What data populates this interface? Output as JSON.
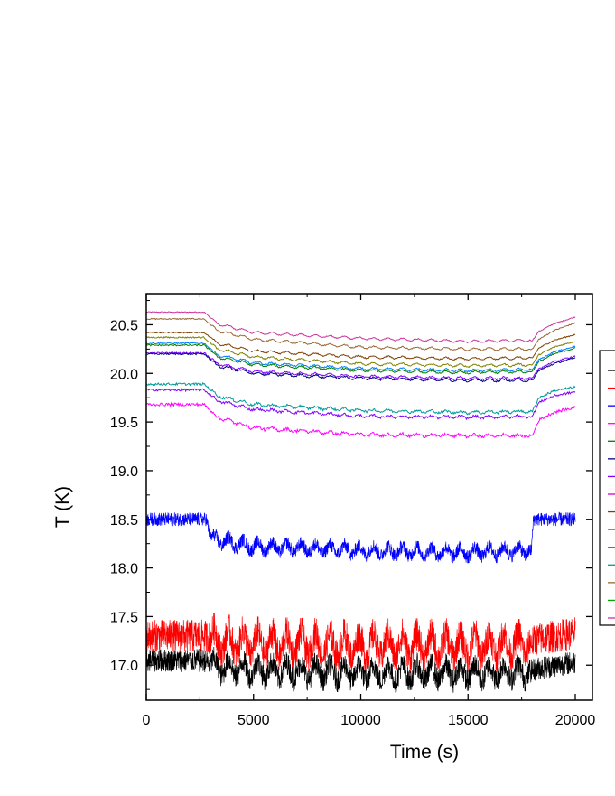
{
  "chart_data": {
    "type": "line",
    "xlabel": "Time (s)",
    "ylabel": "T (K)",
    "xlim": [
      0,
      20800
    ],
    "ylim": [
      16.64,
      20.82
    ],
    "xticks": [
      0,
      5000,
      10000,
      15000,
      20000
    ],
    "xtick_labels": [
      "0",
      "5000",
      "10000",
      "15000",
      "20000"
    ],
    "yticks": [
      17.0,
      17.5,
      18.0,
      18.5,
      19.0,
      19.5,
      20.0,
      20.5
    ],
    "ytick_labels": [
      "17.0",
      "17.5",
      "18.0",
      "18.5",
      "19.0",
      "19.5",
      "20.0",
      "20.5"
    ],
    "grid": false,
    "legend": "right (cut off at image edge, entry labels not visible)",
    "series": [
      {
        "color": "#000000",
        "noise": 0.12,
        "points": [
          [
            0,
            17.05
          ],
          [
            2700,
            17.05
          ],
          [
            3200,
            16.98
          ],
          [
            5000,
            16.95
          ],
          [
            10000,
            16.92
          ],
          [
            15000,
            16.92
          ],
          [
            17800,
            16.93
          ],
          [
            18300,
            16.97
          ],
          [
            20000,
            17.03
          ]
        ]
      },
      {
        "color": "#ff0000",
        "noise": 0.17,
        "points": [
          [
            0,
            17.3
          ],
          [
            2700,
            17.3
          ],
          [
            3200,
            17.25
          ],
          [
            5000,
            17.22
          ],
          [
            10000,
            17.2
          ],
          [
            15000,
            17.2
          ],
          [
            17800,
            17.22
          ],
          [
            18300,
            17.27
          ],
          [
            20000,
            17.33
          ]
        ]
      },
      {
        "color": "#0000ff",
        "noise": 0.07,
        "points": [
          [
            0,
            18.5
          ],
          [
            2800,
            18.5
          ],
          [
            3000,
            18.3
          ],
          [
            5000,
            18.22
          ],
          [
            10000,
            18.18
          ],
          [
            15000,
            18.16
          ],
          [
            17950,
            18.18
          ],
          [
            18050,
            18.5
          ],
          [
            20000,
            18.5
          ]
        ]
      },
      {
        "color": "#ff00ff",
        "noise": 0.015,
        "points": [
          [
            0,
            19.68
          ],
          [
            2700,
            19.68
          ],
          [
            3300,
            19.55
          ],
          [
            5000,
            19.44
          ],
          [
            10000,
            19.37
          ],
          [
            15000,
            19.36
          ],
          [
            18000,
            19.36
          ],
          [
            18300,
            19.52
          ],
          [
            19000,
            19.6
          ],
          [
            20000,
            19.65
          ]
        ]
      },
      {
        "color": "#8000ff",
        "noise": 0.012,
        "points": [
          [
            0,
            19.83
          ],
          [
            2700,
            19.83
          ],
          [
            3300,
            19.72
          ],
          [
            5000,
            19.63
          ],
          [
            10000,
            19.56
          ],
          [
            15000,
            19.55
          ],
          [
            18000,
            19.56
          ],
          [
            18300,
            19.7
          ],
          [
            19000,
            19.77
          ],
          [
            20000,
            19.81
          ]
        ]
      },
      {
        "color": "#009999",
        "noise": 0.012,
        "points": [
          [
            0,
            19.89
          ],
          [
            2700,
            19.89
          ],
          [
            3300,
            19.77
          ],
          [
            5000,
            19.68
          ],
          [
            10000,
            19.62
          ],
          [
            15000,
            19.6
          ],
          [
            18000,
            19.61
          ],
          [
            18300,
            19.75
          ],
          [
            19000,
            19.82
          ],
          [
            20000,
            19.86
          ]
        ]
      },
      {
        "color": "#000080",
        "noise": 0.008,
        "points": [
          [
            0,
            20.2
          ],
          [
            2700,
            20.2
          ],
          [
            3300,
            20.08
          ],
          [
            5000,
            20.0
          ],
          [
            10000,
            19.95
          ],
          [
            15000,
            19.93
          ],
          [
            18000,
            19.93
          ],
          [
            18300,
            20.03
          ],
          [
            19000,
            20.1
          ],
          [
            20000,
            20.16
          ]
        ]
      },
      {
        "color": "#7f00ff",
        "noise": 0.008,
        "points": [
          [
            0,
            20.21
          ],
          [
            2700,
            20.21
          ],
          [
            3300,
            20.1
          ],
          [
            5000,
            20.02
          ],
          [
            10000,
            19.97
          ],
          [
            15000,
            19.95
          ],
          [
            18000,
            19.95
          ],
          [
            18300,
            20.05
          ],
          [
            19000,
            20.12
          ],
          [
            20000,
            20.18
          ]
        ]
      },
      {
        "color": "#007f00",
        "noise": 0.007,
        "points": [
          [
            0,
            20.29
          ],
          [
            2700,
            20.29
          ],
          [
            3300,
            20.17
          ],
          [
            5000,
            20.09
          ],
          [
            10000,
            20.03
          ],
          [
            15000,
            20.01
          ],
          [
            18000,
            20.02
          ],
          [
            18300,
            20.12
          ],
          [
            19000,
            20.2
          ],
          [
            20000,
            20.26
          ]
        ]
      },
      {
        "color": "#0080ff",
        "noise": 0.007,
        "points": [
          [
            0,
            20.31
          ],
          [
            2700,
            20.31
          ],
          [
            3300,
            20.19
          ],
          [
            5000,
            20.11
          ],
          [
            10000,
            20.05
          ],
          [
            15000,
            20.03
          ],
          [
            18000,
            20.04
          ],
          [
            18300,
            20.14
          ],
          [
            19000,
            20.22
          ],
          [
            20000,
            20.28
          ]
        ]
      },
      {
        "color": "#808000",
        "noise": 0.007,
        "points": [
          [
            0,
            20.37
          ],
          [
            2700,
            20.37
          ],
          [
            3300,
            20.25
          ],
          [
            5000,
            20.17
          ],
          [
            10000,
            20.1
          ],
          [
            15000,
            20.08
          ],
          [
            18000,
            20.09
          ],
          [
            18300,
            20.19
          ],
          [
            19000,
            20.27
          ],
          [
            20000,
            20.33
          ]
        ]
      },
      {
        "color": "#804000",
        "noise": 0.006,
        "points": [
          [
            0,
            20.42
          ],
          [
            2700,
            20.42
          ],
          [
            3300,
            20.31
          ],
          [
            5000,
            20.23
          ],
          [
            10000,
            20.17
          ],
          [
            15000,
            20.15
          ],
          [
            18000,
            20.16
          ],
          [
            18300,
            20.26
          ],
          [
            19000,
            20.34
          ],
          [
            20000,
            20.4
          ]
        ]
      },
      {
        "color": "#996633",
        "noise": 0.006,
        "points": [
          [
            0,
            20.56
          ],
          [
            2700,
            20.56
          ],
          [
            3300,
            20.44
          ],
          [
            5000,
            20.35
          ],
          [
            10000,
            20.27
          ],
          [
            15000,
            20.25
          ],
          [
            18000,
            20.25
          ],
          [
            18300,
            20.35
          ],
          [
            19000,
            20.44
          ],
          [
            20000,
            20.52
          ]
        ]
      },
      {
        "color": "#cc3399",
        "noise": 0.005,
        "points": [
          [
            0,
            20.63
          ],
          [
            2700,
            20.63
          ],
          [
            3300,
            20.51
          ],
          [
            5000,
            20.42
          ],
          [
            10000,
            20.36
          ],
          [
            15000,
            20.33
          ],
          [
            18000,
            20.34
          ],
          [
            18300,
            20.43
          ],
          [
            19000,
            20.51
          ],
          [
            20000,
            20.58
          ]
        ]
      }
    ],
    "legend_colors": [
      "#000000",
      "#ff0000",
      "#0000ff",
      "#ff00ff",
      "#007f00",
      "#000080",
      "#8000ff",
      "#cc00cc",
      "#804000",
      "#808000",
      "#0080ff",
      "#009999",
      "#996633",
      "#00aa00",
      "#cc3399"
    ]
  }
}
